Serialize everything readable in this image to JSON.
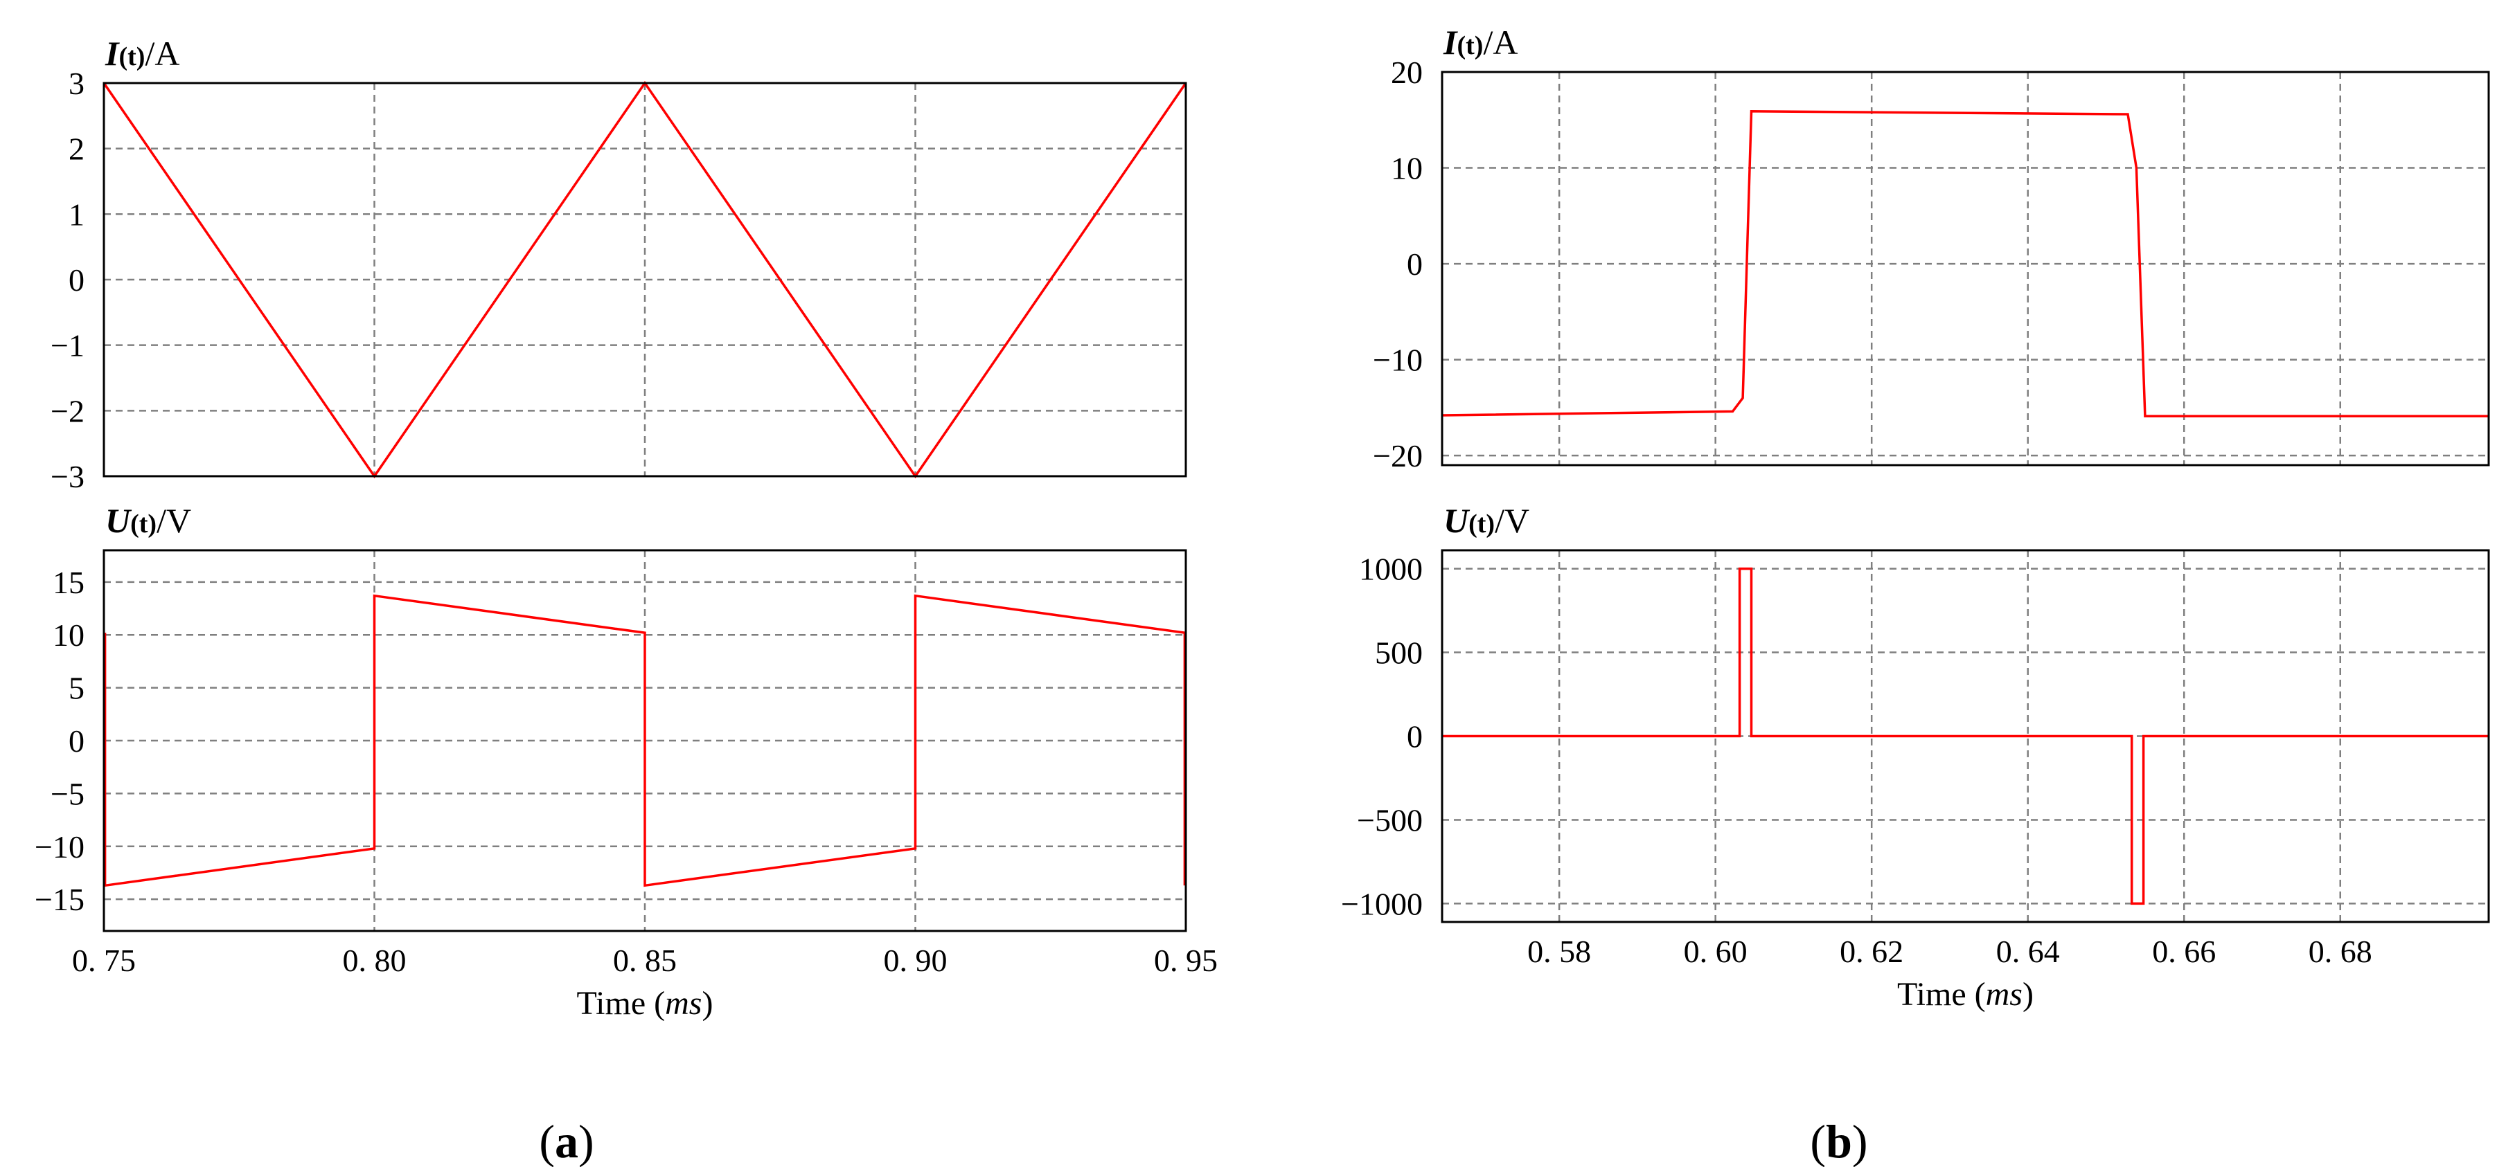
{
  "figure": {
    "panel_labels": {
      "a": "a",
      "b": "b"
    },
    "style": {
      "trace_color": "#ff0000",
      "grid_color": "#7f7f7f",
      "frame_color": "#000000",
      "background": "#ffffff"
    }
  },
  "chart_data": [
    {
      "id": "a-current",
      "panel": "a",
      "type": "line",
      "ylabel_var": "I",
      "ylabel_sub": "(t)",
      "ylabel_unit": "/A",
      "xlim": [
        0.75,
        0.95
      ],
      "ylim": [
        -3,
        3
      ],
      "x_grid": [
        0.8,
        0.85,
        0.9
      ],
      "y_ticks": [
        3,
        2,
        1,
        0,
        -1,
        -2,
        -3
      ],
      "y_tick_labels": [
        "3",
        "2",
        "1",
        "0",
        "−1",
        "−2",
        "−3"
      ],
      "grid": true,
      "series": [
        {
          "name": "I(t)",
          "x": [
            0.75,
            0.8,
            0.85,
            0.9,
            0.95
          ],
          "y": [
            3,
            -3,
            3,
            -3,
            3
          ]
        }
      ]
    },
    {
      "id": "a-voltage",
      "panel": "a",
      "type": "line",
      "ylabel_var": "U",
      "ylabel_sub": "(t)",
      "ylabel_unit": "/V",
      "xlim": [
        0.75,
        0.95
      ],
      "ylim": [
        -18,
        18
      ],
      "x_grid": [
        0.8,
        0.85,
        0.9
      ],
      "x_ticks": [
        0.75,
        0.8,
        0.85,
        0.9,
        0.95
      ],
      "x_tick_labels": [
        "0. 75",
        "0. 80",
        "0. 85",
        "0. 90",
        "0. 95"
      ],
      "y_ticks": [
        15,
        10,
        5,
        0,
        -5,
        -10,
        -15
      ],
      "y_tick_labels": [
        "15",
        "10",
        "5",
        "0",
        "−5",
        "−10",
        "−15"
      ],
      "xlabel_text": "Time (",
      "xlabel_unit": "ms",
      "xlabel_close": ")",
      "grid": true,
      "series": [
        {
          "name": "U(t)",
          "x": [
            0.7502,
            0.7502,
            0.8,
            0.8,
            0.85,
            0.85,
            0.9,
            0.9,
            0.9498,
            0.9498
          ],
          "y": [
            10.2,
            -13.7,
            -10.2,
            13.7,
            10.2,
            -13.7,
            -10.2,
            13.7,
            10.2,
            -13.7
          ]
        }
      ]
    },
    {
      "id": "b-current",
      "panel": "b",
      "type": "line",
      "ylabel_var": "I",
      "ylabel_sub": "(t)",
      "ylabel_unit": "/A",
      "xlim": [
        0.565,
        0.699
      ],
      "ylim": [
        -21,
        20
      ],
      "x_grid": [
        0.58,
        0.6,
        0.62,
        0.64,
        0.66,
        0.68
      ],
      "y_ticks": [
        20,
        10,
        0,
        -10,
        -20
      ],
      "y_tick_labels": [
        "20",
        "10",
        "0",
        "−10",
        "−20"
      ],
      "grid": true,
      "series": [
        {
          "name": "I(t)",
          "x": [
            0.565,
            0.6022,
            0.6035,
            0.6046,
            0.6528,
            0.6539,
            0.655,
            0.699
          ],
          "y": [
            -15.8,
            -15.4,
            -14.0,
            15.9,
            15.6,
            10.0,
            -15.9,
            -15.9
          ]
        }
      ]
    },
    {
      "id": "b-voltage",
      "panel": "b",
      "type": "line",
      "ylabel_var": "U",
      "ylabel_sub": "(t)",
      "ylabel_unit": "/V",
      "xlim": [
        0.565,
        0.699
      ],
      "ylim": [
        -1110,
        1110
      ],
      "x_grid": [
        0.58,
        0.6,
        0.62,
        0.64,
        0.66,
        0.68
      ],
      "x_ticks": [
        0.58,
        0.6,
        0.62,
        0.64,
        0.66,
        0.68
      ],
      "x_tick_labels": [
        "0. 58",
        "0. 60",
        "0. 62",
        "0. 64",
        "0. 66",
        "0. 68"
      ],
      "y_ticks": [
        1000,
        500,
        0,
        -500,
        -1000
      ],
      "y_tick_labels": [
        "1000",
        "500",
        "0",
        "−500",
        "−1000"
      ],
      "xlabel_text": "Time (",
      "xlabel_unit": "ms",
      "xlabel_close": ")",
      "grid": true,
      "series": [
        {
          "name": "U(t)",
          "x": [
            0.565,
            0.6031,
            0.6031,
            0.6046,
            0.6046,
            0.6533,
            0.6533,
            0.6548,
            0.6548,
            0.699
          ],
          "y": [
            0,
            0,
            1000,
            1000,
            0,
            0,
            -1000,
            -1000,
            0,
            0
          ]
        }
      ]
    }
  ]
}
